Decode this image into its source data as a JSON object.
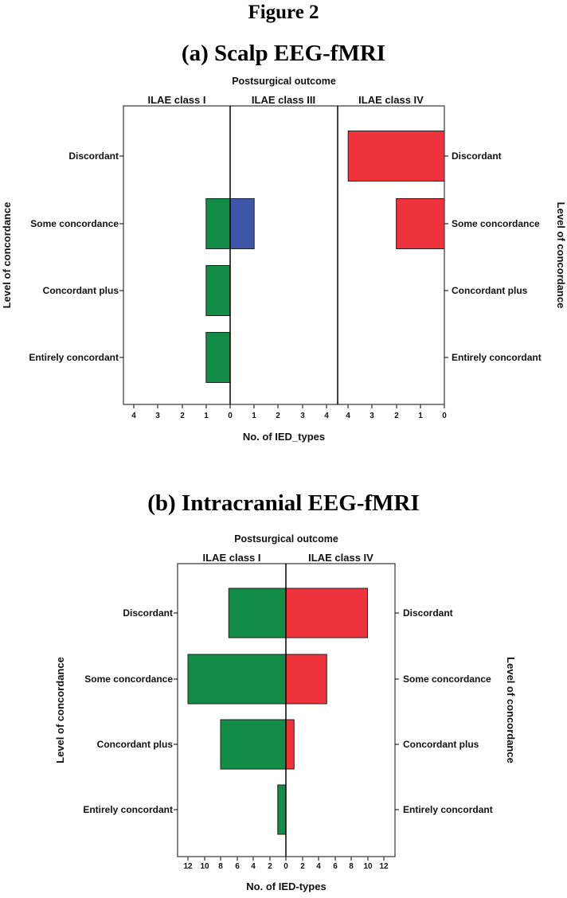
{
  "figure_title": "Figure 2",
  "colors": {
    "class_I": "#128c46",
    "class_III": "#3f56a8",
    "class_IV": "#ef333c",
    "axis": "#000000"
  },
  "chart_data": [
    {
      "type": "bar",
      "subtype": "mirrored-horizontal-bar",
      "title": "(a) Scalp EEG-fMRI",
      "panel_title": "Postsurgical outcome",
      "xlabel": "No. of IED_types",
      "ylabel": "Level of concordance",
      "categories": [
        "Discordant",
        "Some concordance",
        "Concordant plus",
        "Entirely concordant"
      ],
      "xlim": [
        0,
        4
      ],
      "xticks": [
        0,
        1,
        2,
        3,
        4
      ],
      "series": [
        {
          "name": "ILAE class I",
          "direction": "left",
          "color": "#128c46",
          "values": [
            0,
            1,
            1,
            1
          ]
        },
        {
          "name": "ILAE class III",
          "direction": "right",
          "color": "#3f56a8",
          "values": [
            0,
            1,
            0,
            0
          ]
        },
        {
          "name": "ILAE class IV",
          "direction": "left",
          "color": "#ef333c",
          "values": [
            4,
            2,
            0,
            0
          ]
        }
      ],
      "grid": false
    },
    {
      "type": "bar",
      "subtype": "mirrored-horizontal-bar",
      "title": "(b) Intracranial EEG-fMRI",
      "panel_title": "Postsurgical outcome",
      "xlabel": "No. of IED-types",
      "ylabel": "Level of concordance",
      "categories": [
        "Discordant",
        "Some concordance",
        "Concordant plus",
        "Entirely concordant"
      ],
      "xlim": [
        0,
        12
      ],
      "xticks": [
        0,
        2,
        4,
        6,
        8,
        10,
        12
      ],
      "series": [
        {
          "name": "ILAE class I",
          "direction": "left",
          "color": "#128c46",
          "values": [
            7,
            12,
            8,
            1
          ]
        },
        {
          "name": "ILAE class IV",
          "direction": "right",
          "color": "#ef333c",
          "values": [
            10,
            5,
            1,
            0
          ]
        }
      ],
      "grid": false
    }
  ]
}
